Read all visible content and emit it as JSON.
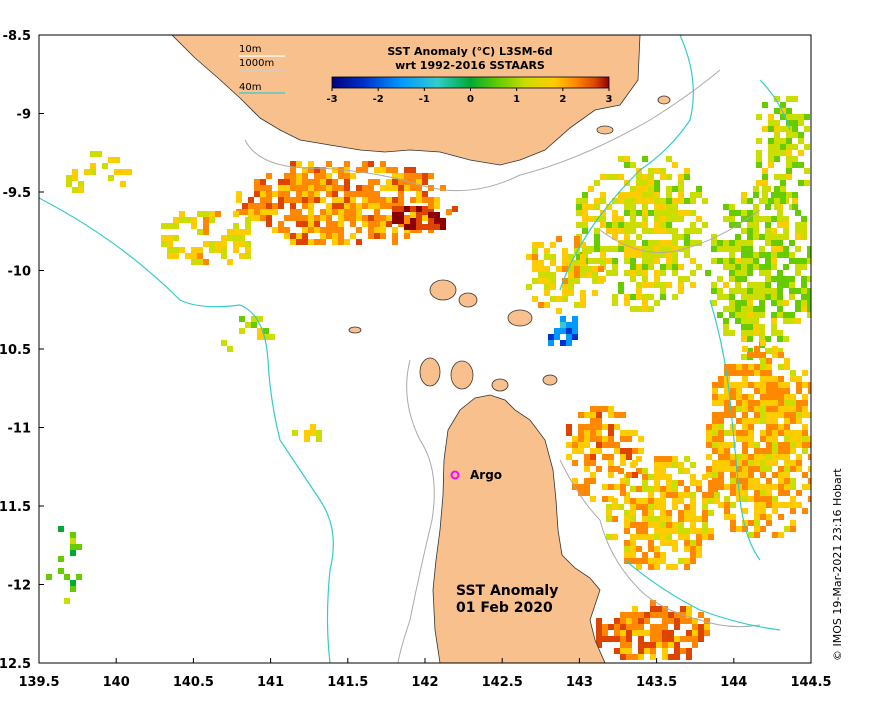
{
  "map": {
    "title_line1": "SST Anomaly (°C) L3SM-6d",
    "title_line2": "wrt 1992-2016 SSTAARS",
    "colorbar": {
      "ticks": [
        "-3",
        "-2",
        "-1",
        "0",
        "1",
        "2",
        "3"
      ],
      "range": [
        -3,
        3
      ],
      "colors": [
        "#00007f",
        "#0033cc",
        "#0099ff",
        "#33cccc",
        "#00aa33",
        "#66cc00",
        "#ccdd00",
        "#ffcc00",
        "#ff8800",
        "#dd4400",
        "#8b0000"
      ]
    },
    "depth_legend": [
      {
        "label": "10m",
        "color": "#ffffff"
      },
      {
        "label": "1000m",
        "color": "#cccccc"
      },
      {
        "label": "40m",
        "color": "#33cccc"
      }
    ],
    "stamp_line1": "SST Anomaly",
    "stamp_line2": "01 Feb 2020",
    "argo_label": "Argo",
    "credit": "© IMOS 19-Mar-2021 23:16 Hobart",
    "x_ticks": [
      "139.5",
      "140",
      "140.5",
      "141",
      "141.5",
      "142",
      "142.5",
      "143",
      "143.5",
      "144",
      "144.5"
    ],
    "y_ticks": [
      "-8.5",
      "-9",
      "-9.5",
      "-10",
      "-10.5",
      "-11",
      "-11.5",
      "-12",
      "-12.5"
    ],
    "x_range": [
      139.5,
      144.5
    ],
    "y_range": [
      -12.5,
      -8.5
    ],
    "colors": {
      "land": "#f7c08c",
      "ocean": "#ffffff",
      "coast": "#333333",
      "isobath_1000": "#aaaaaa",
      "isobath_40": "#33cccc",
      "argo_marker": "#ff00ff"
    }
  }
}
